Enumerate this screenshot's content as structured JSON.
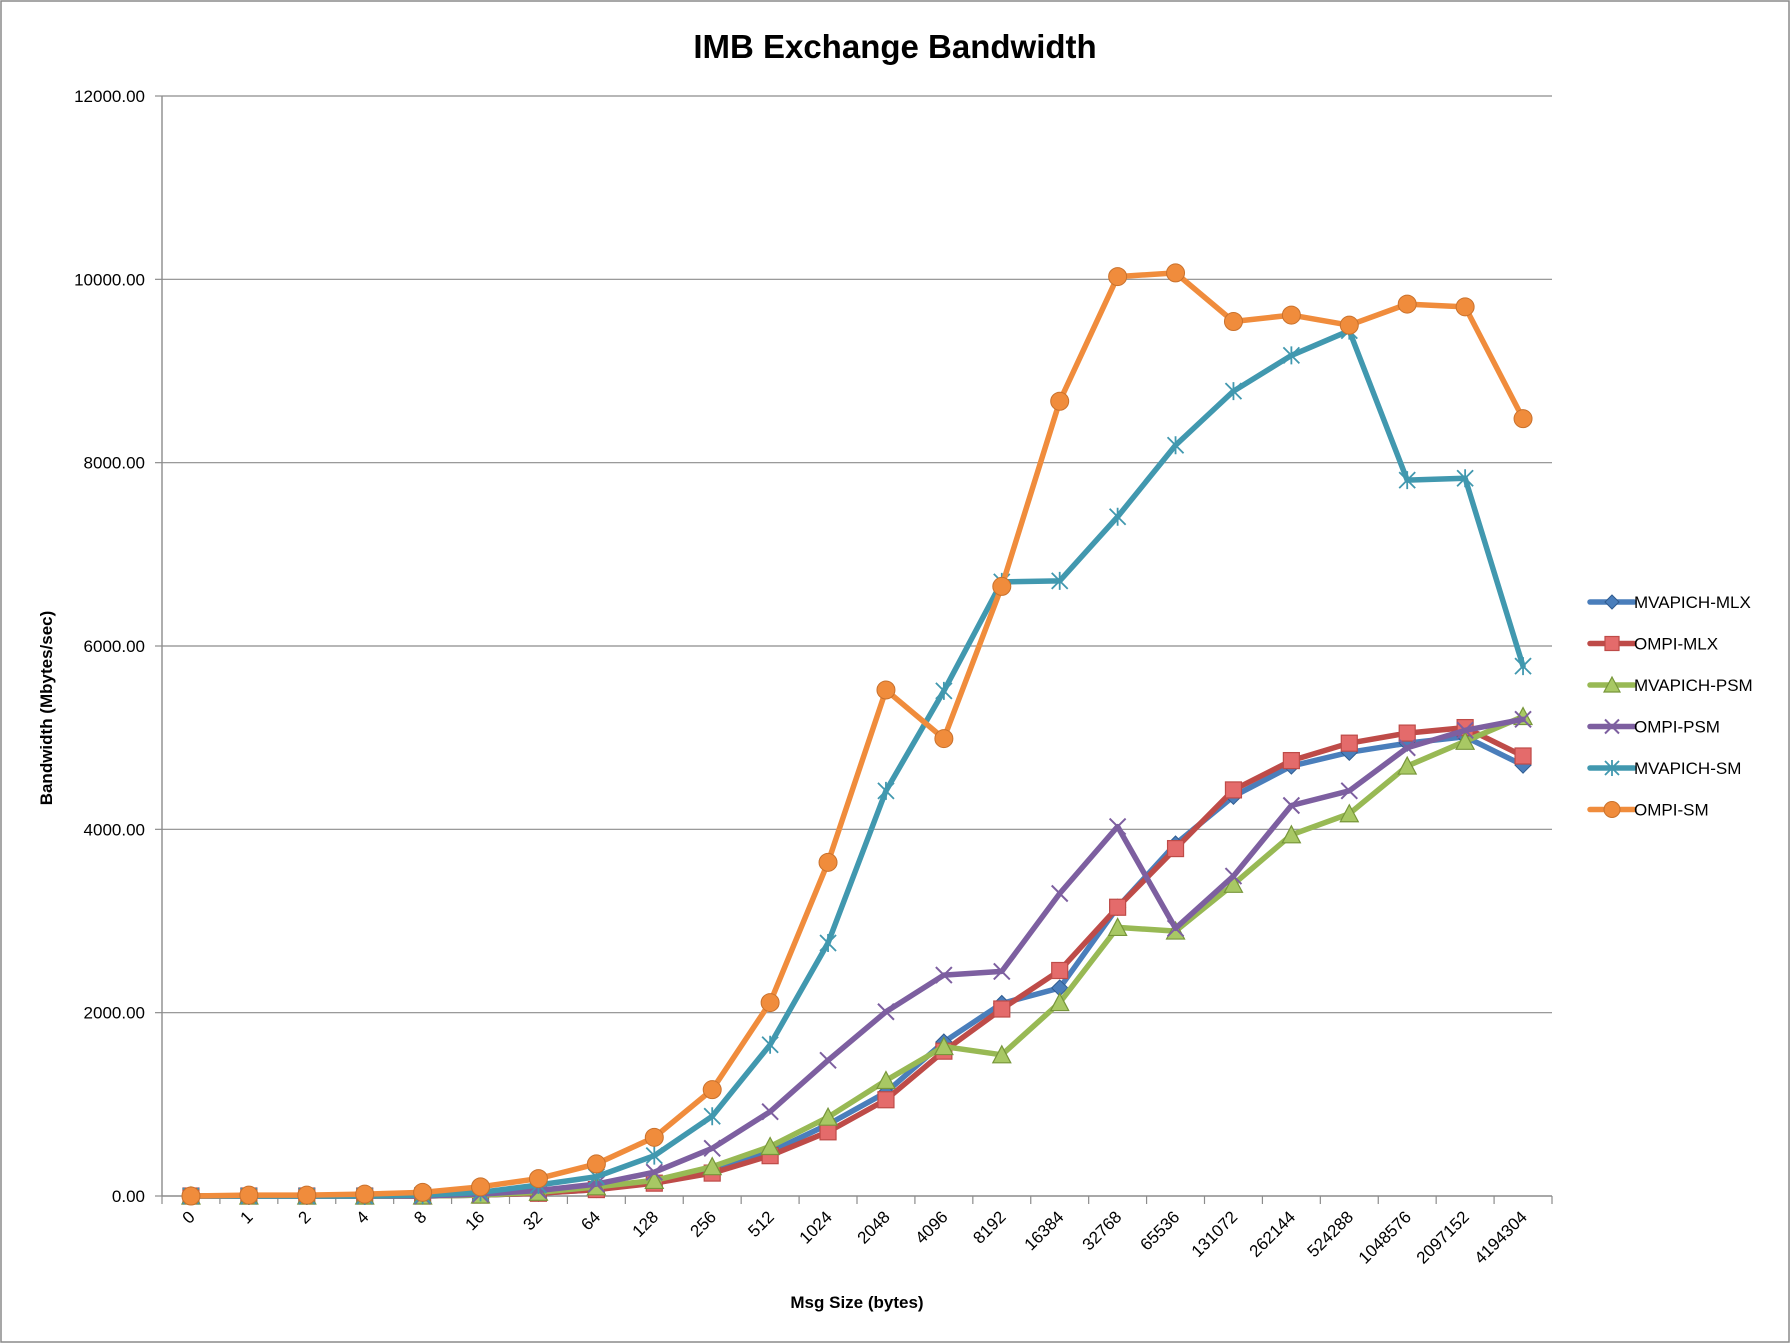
{
  "chart_data": {
    "type": "line",
    "title": "IMB Exchange Bandwidth",
    "xlabel": "Msg Size (bytes)",
    "ylabel": "Bandwidth (Mbytes/sec)",
    "ylim": [
      0,
      12000
    ],
    "yticks": [
      "0.00",
      "2000.00",
      "4000.00",
      "6000.00",
      "8000.00",
      "10000.00",
      "12000.00"
    ],
    "grid": true,
    "legend_position": "right",
    "categories": [
      "0",
      "1",
      "2",
      "4",
      "8",
      "16",
      "32",
      "64",
      "128",
      "256",
      "512",
      "1024",
      "2048",
      "4096",
      "8192",
      "16384",
      "32768",
      "65536",
      "131072",
      "262144",
      "524288",
      "1048576",
      "2097152",
      "4194304"
    ],
    "series": [
      {
        "name": "MVAPICH-MLX",
        "color": "#4A7EBB",
        "marker": "diamond",
        "values": [
          0,
          0,
          0,
          0,
          0,
          10,
          30,
          70,
          150,
          270,
          480,
          780,
          1130,
          1680,
          2100,
          2270,
          3150,
          3840,
          4360,
          4690,
          4840,
          4940,
          5010,
          4700
        ]
      },
      {
        "name": "OMPI-MLX",
        "color": "#BE4B48",
        "marker": "square",
        "values": [
          0,
          0,
          0,
          0,
          0,
          10,
          30,
          70,
          140,
          250,
          440,
          700,
          1050,
          1580,
          2040,
          2460,
          3150,
          3790,
          4430,
          4750,
          4940,
          5050,
          5110,
          4800
        ]
      },
      {
        "name": "MVAPICH-PSM",
        "color": "#98B954",
        "marker": "triangle",
        "values": [
          0,
          0,
          0,
          0,
          0,
          10,
          40,
          100,
          170,
          320,
          540,
          860,
          1260,
          1630,
          1540,
          2110,
          2930,
          2890,
          3400,
          3940,
          4170,
          4690,
          4960,
          5230
        ]
      },
      {
        "name": "OMPI-PSM",
        "color": "#7D5FA0",
        "marker": "x",
        "values": [
          0,
          0,
          0,
          0,
          0,
          20,
          60,
          130,
          260,
          520,
          920,
          1480,
          2010,
          2410,
          2450,
          3300,
          4030,
          2920,
          3490,
          4260,
          4420,
          4890,
          5080,
          5200
        ]
      },
      {
        "name": "MVAPICH-SM",
        "color": "#4198AF",
        "marker": "asterisk",
        "values": [
          0,
          0,
          0,
          0,
          10,
          40,
          120,
          210,
          440,
          870,
          1650,
          2760,
          4420,
          5510,
          6700,
          6710,
          7410,
          8190,
          8780,
          9170,
          9440,
          7810,
          7830,
          5780
        ]
      },
      {
        "name": "OMPI-SM",
        "color": "#F08C3C",
        "marker": "circle",
        "values": [
          0,
          10,
          10,
          20,
          40,
          100,
          190,
          350,
          640,
          1160,
          2110,
          3640,
          5520,
          4990,
          6650,
          8670,
          10030,
          10070,
          9540,
          9610,
          9500,
          9730,
          9700,
          8480
        ]
      }
    ]
  }
}
